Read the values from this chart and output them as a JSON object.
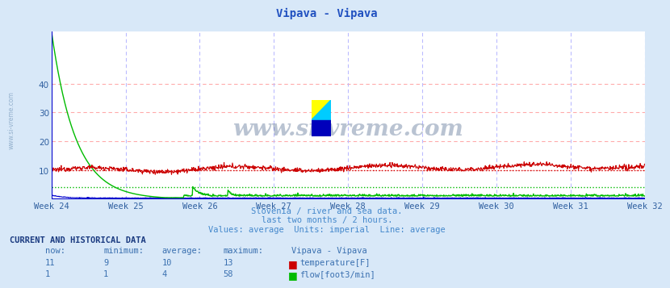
{
  "title": "Vipava - Vipava",
  "title_color": "#2050c0",
  "bg_color": "#d8e8f8",
  "plot_bg_color": "#ffffff",
  "grid_color_h": "#ffaaaa",
  "grid_color_v": "#bbbbff",
  "x_label_color": "#3060a0",
  "y_label_color": "#3060a0",
  "axis_color": "#0000cc",
  "weeks": [
    "Week 24",
    "Week 25",
    "Week 26",
    "Week 27",
    "Week 28",
    "Week 29",
    "Week 30",
    "Week 31",
    "Week 32"
  ],
  "week_positions": [
    0,
    168,
    336,
    504,
    672,
    840,
    1008,
    1176,
    1344
  ],
  "n_points": 1345,
  "temp_now": 11,
  "temp_min": 9,
  "temp_avg": 10,
  "temp_max": 13,
  "flow_now": 1,
  "flow_min": 1,
  "flow_avg": 4,
  "flow_max": 58,
  "temp_color": "#cc0000",
  "flow_color": "#00bb00",
  "height_color": "#0000cc",
  "subtitle1": "Slovenia / river and sea data.",
  "subtitle2": "last two months / 2 hours.",
  "subtitle3": "Values: average  Units: imperial  Line: average",
  "subtitle_color": "#4488cc",
  "table_header_color": "#1a3a80",
  "table_data_color": "#3a70b0",
  "watermark": "www.si-vreme.com",
  "watermark_color": "#1a3a6a",
  "ylim_min": 0,
  "ylim_max": 58,
  "yticks": [
    10,
    20,
    30,
    40
  ],
  "logo_yellow": "#ffff00",
  "logo_cyan": "#00ccff",
  "logo_blue": "#0000bb"
}
